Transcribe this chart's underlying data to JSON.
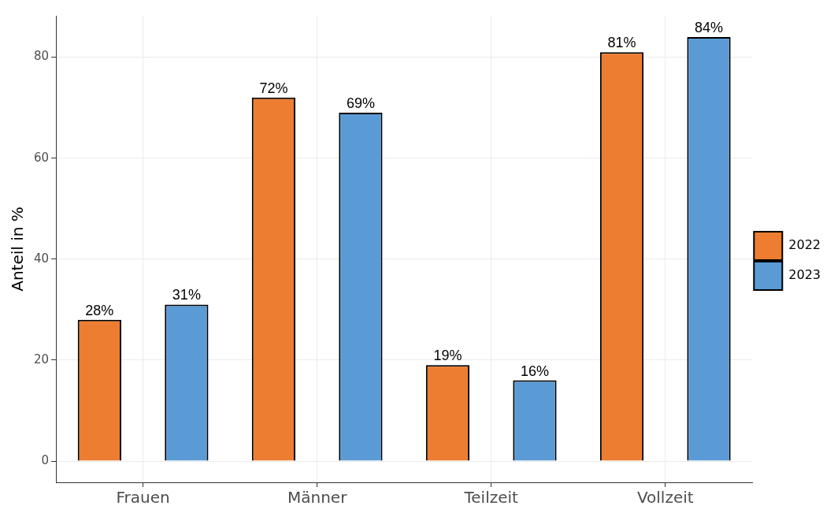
{
  "chart_data": {
    "type": "bar",
    "ylabel": "Anteil in %",
    "categories": [
      "Frauen",
      "Männer",
      "Teilzeit",
      "Vollzeit"
    ],
    "series": [
      {
        "name": "2022",
        "color": "#ed7d31",
        "values": [
          28,
          72,
          19,
          81
        ],
        "value_labels": [
          "28%",
          "72%",
          "19%",
          "81%"
        ]
      },
      {
        "name": "2023",
        "color": "#5b9bd5",
        "values": [
          31,
          69,
          16,
          84
        ],
        "value_labels": [
          "31%",
          "69%",
          "16%",
          "84%"
        ]
      }
    ],
    "ylim": [
      -4.2,
      88.2
    ],
    "yticks": [
      0,
      20,
      40,
      60,
      80
    ],
    "grid": true,
    "legend": "right"
  }
}
